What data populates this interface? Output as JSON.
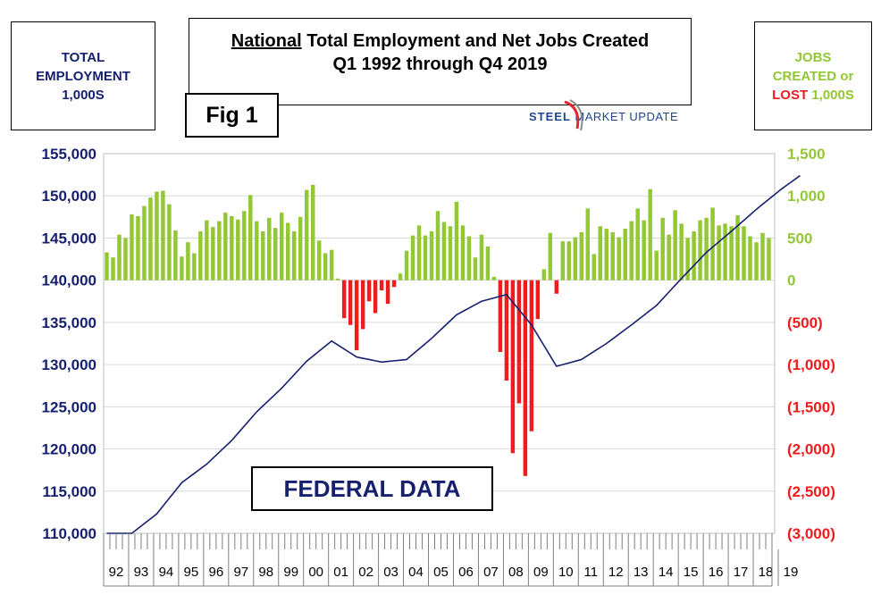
{
  "left_box": {
    "line1": "TOTAL",
    "line2": "EMPLOYMENT",
    "line3": "1,000S"
  },
  "right_box": {
    "line1": "JOBS",
    "line2": "CREATED or",
    "lost_word": "LOST",
    "units": "1,000S"
  },
  "title": {
    "underlined": "National",
    "rest": " Total Employment and Net Jobs Created",
    "line2": "Q1 1992 through Q4 2019"
  },
  "figure_label": "Fig 1",
  "logo": {
    "steel": "STEEL",
    "rest": "MARKET UPDATE"
  },
  "annotation": "FEDERAL DATA",
  "colors": {
    "employment_line": "#16206e",
    "positive_bar": "#92c834",
    "negative_bar": "#ee1c1c",
    "left_axis_text": "#16206e"
  },
  "chart_data": {
    "type": "bar",
    "quarters_start": "1992 Q1",
    "x_tick_labels": [
      "92",
      "93",
      "94",
      "95",
      "96",
      "97",
      "98",
      "99",
      "00",
      "01",
      "02",
      "03",
      "04",
      "05",
      "06",
      "07",
      "08",
      "09",
      "10",
      "11",
      "12",
      "13",
      "14",
      "15",
      "16",
      "17",
      "18",
      "19"
    ],
    "left_axis": {
      "ticks": [
        "110,000",
        "115,000",
        "120,000",
        "125,000",
        "130,000",
        "135,000",
        "140,000",
        "145,000",
        "150,000",
        "155,000"
      ],
      "range": [
        110000,
        155000
      ]
    },
    "right_axis": {
      "ticks": [
        "(3,000)",
        "(2,500)",
        "(2,000)",
        "(1,500)",
        "(1,000)",
        "(500)",
        "0",
        "500",
        "1,000",
        "1,500"
      ],
      "range": [
        -3000,
        1500
      ]
    },
    "grid": true,
    "series": [
      {
        "type": "bar",
        "axis": "right",
        "values": [
          330,
          270,
          540,
          500,
          780,
          760,
          880,
          980,
          1050,
          1060,
          900,
          590,
          280,
          450,
          320,
          580,
          710,
          630,
          700,
          800,
          760,
          720,
          820,
          1010,
          700,
          580,
          740,
          620,
          800,
          680,
          580,
          750,
          1070,
          1130,
          470,
          320,
          360,
          20,
          -450,
          -530,
          -830,
          -580,
          -250,
          -390,
          -120,
          -280,
          -80,
          80,
          350,
          530,
          650,
          530,
          580,
          820,
          690,
          640,
          930,
          650,
          520,
          270,
          540,
          400,
          40,
          -850,
          -1190,
          -2050,
          -1460,
          -2320,
          -1790,
          -460,
          130,
          560,
          -160,
          460,
          460,
          510,
          570,
          850,
          310,
          640,
          610,
          570,
          510,
          610,
          700,
          850,
          710,
          1080,
          350,
          740,
          540,
          830,
          670,
          500,
          580,
          710,
          740,
          860,
          650,
          670,
          640,
          770,
          640,
          520,
          450,
          560,
          500
        ]
      },
      {
        "type": "line",
        "axis": "left",
        "description": "Total employment (thousands), quarterly",
        "key_points": [
          {
            "q": "1992 Q1",
            "v": 108300
          },
          {
            "q": "1993 Q1",
            "v": 110000
          },
          {
            "q": "1994 Q1",
            "v": 112300
          },
          {
            "q": "1995 Q1",
            "v": 116000
          },
          {
            "q": "1996 Q1",
            "v": 118200
          },
          {
            "q": "1997 Q1",
            "v": 121000
          },
          {
            "q": "1998 Q1",
            "v": 124400
          },
          {
            "q": "1999 Q1",
            "v": 127200
          },
          {
            "q": "2000 Q1",
            "v": 130400
          },
          {
            "q": "2001 Q1",
            "v": 132800
          },
          {
            "q": "2002 Q1",
            "v": 130900
          },
          {
            "q": "2003 Q1",
            "v": 130300
          },
          {
            "q": "2004 Q1",
            "v": 130600
          },
          {
            "q": "2005 Q1",
            "v": 133100
          },
          {
            "q": "2006 Q1",
            "v": 135900
          },
          {
            "q": "2007 Q1",
            "v": 137500
          },
          {
            "q": "2008 Q1",
            "v": 138300
          },
          {
            "q": "2009 Q1",
            "v": 134700
          },
          {
            "q": "2010 Q1",
            "v": 129800
          },
          {
            "q": "2011 Q1",
            "v": 130600
          },
          {
            "q": "2012 Q1",
            "v": 132500
          },
          {
            "q": "2013 Q1",
            "v": 134700
          },
          {
            "q": "2014 Q1",
            "v": 137000
          },
          {
            "q": "2015 Q1",
            "v": 140200
          },
          {
            "q": "2016 Q1",
            "v": 143300
          },
          {
            "q": "2017 Q1",
            "v": 145800
          },
          {
            "q": "2018 Q1",
            "v": 148400
          },
          {
            "q": "2019 Q1",
            "v": 150800
          },
          {
            "q": "2019 Q4",
            "v": 152400
          }
        ]
      }
    ]
  }
}
